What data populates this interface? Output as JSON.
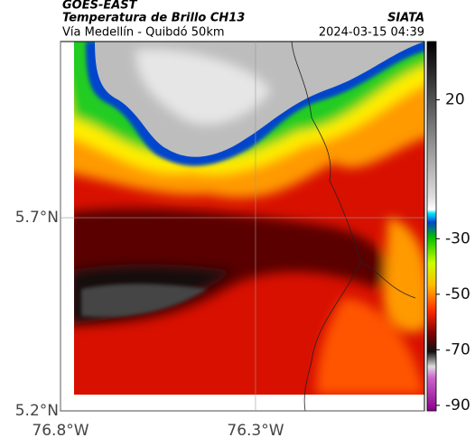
{
  "header": {
    "satellite": "GOES-EAST",
    "product": "Temperatura de Brillo CH13",
    "source": "SIATA",
    "region": "Vía Medellín - Quibdó 50km",
    "datetime": "2024-03-15 04:39"
  },
  "map": {
    "xlim": [
      -76.8,
      -75.867
    ],
    "ylim": [
      5.2,
      6.156
    ],
    "xticks": [
      {
        "value": -76.8,
        "label": "76.8°W"
      },
      {
        "value": -76.3,
        "label": "76.3°W"
      }
    ],
    "yticks": [
      {
        "value": 5.7,
        "label": "5.7°N"
      },
      {
        "value": 5.2,
        "label": "5.2°N"
      }
    ]
  },
  "colorbar": {
    "lim": [
      -92,
      41
    ],
    "ticks": [
      20,
      -30,
      -50,
      -70,
      -90
    ]
  }
}
